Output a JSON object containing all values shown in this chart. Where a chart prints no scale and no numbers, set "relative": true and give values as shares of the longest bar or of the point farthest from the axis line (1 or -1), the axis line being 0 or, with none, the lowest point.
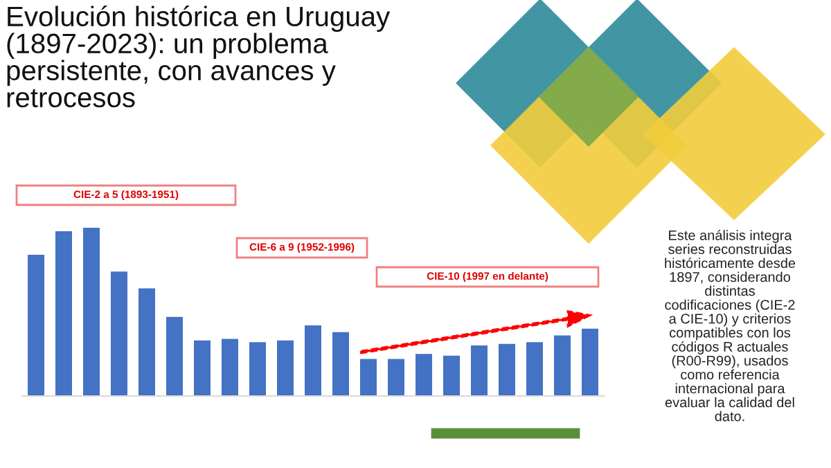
{
  "chart_data": {
    "type": "bar",
    "relative": true,
    "title": "Evolución histórica en Uruguay\n(1897-2023): un problema\npersistente, con avances y\nretrocesos",
    "categories": [
      null,
      null,
      null,
      null,
      null,
      null,
      null,
      null,
      null,
      null,
      null,
      null,
      null,
      null,
      null,
      null,
      null,
      null,
      null,
      null,
      null
    ],
    "values": [
      0.84,
      0.98,
      1,
      0.74,
      0.64,
      0.47,
      0.33,
      0.34,
      0.32,
      0.33,
      0.42,
      0.38,
      0.22,
      0.22,
      0.25,
      0.24,
      0.3,
      0.31,
      0.32,
      0.36,
      0.4
    ],
    "color": "#4472c4",
    "annotations": [
      "CIE-2 a 5 (1893-1951)",
      "CIE-6 a 9 (1952-1996)",
      "CIE-10 (1997 en delante)",
      "Este análisis integra\nseries reconstruidas\nhistóricamente desde\n1897, considerando\ndistintas\ncodificaciones (CIE-2\na CIE-10) y criterios\ncompatibles con los\ncódigos R actuales\n(R00-R99), usados\ncomo referencia\ninternacional para\nevaluar la calidad del\ndato."
    ],
    "grid": false,
    "legend": false
  }
}
